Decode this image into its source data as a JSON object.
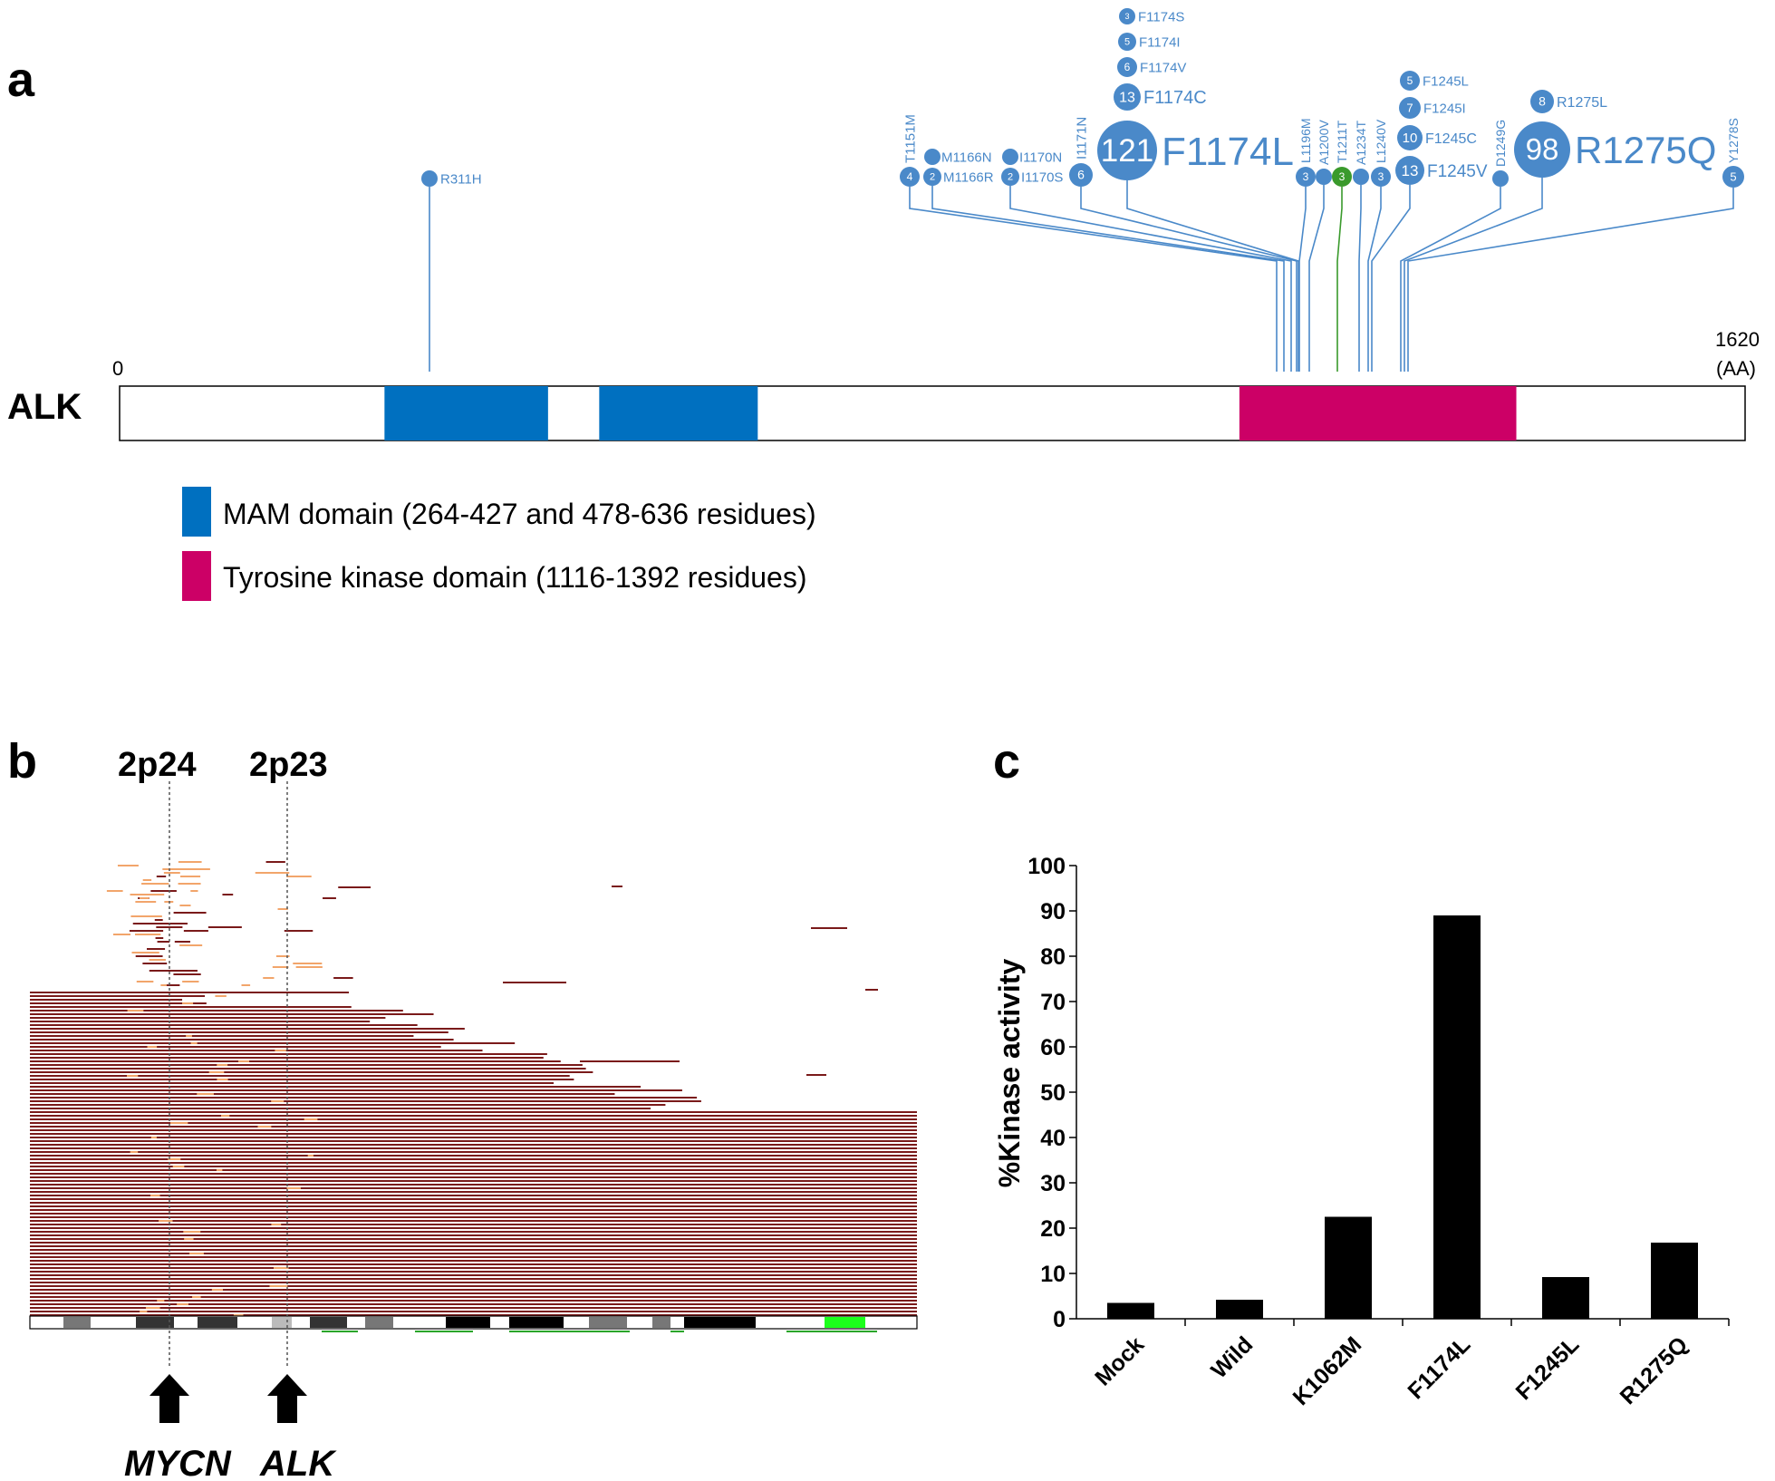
{
  "panels": {
    "a": "a",
    "b": "b",
    "c": "c"
  },
  "lollipop": {
    "protein": "ALK",
    "start_label": "0",
    "end_label": "1620",
    "unit_label": "(AA)",
    "length": 1620,
    "domains": [
      {
        "name": "MAM",
        "start": 264,
        "end": 427,
        "color": "#0070c0"
      },
      {
        "name": "MAM",
        "start": 478,
        "end": 636,
        "color": "#0070c0"
      },
      {
        "name": "Tyrosine kinase",
        "start": 1116,
        "end": 1392,
        "color": "#cc0066"
      }
    ],
    "legend": [
      {
        "text": "MAM domain (264-427 and 478-636 residues)",
        "color": "#0070c0"
      },
      {
        "text": "Tyrosine kinase domain (1116-1392 residues)",
        "color": "#cc0066"
      }
    ],
    "mutations": [
      {
        "label": "R311H",
        "pos": 311,
        "count": "",
        "color": "#4a89c9"
      },
      {
        "label": "T1151M",
        "pos": 1151,
        "count": "4",
        "color": "#4a89c9"
      },
      {
        "label": "M1166N",
        "pos": 1166,
        "count": "",
        "color": "#4a89c9"
      },
      {
        "label": "M1166R",
        "pos": 1166,
        "count": "2",
        "color": "#4a89c9"
      },
      {
        "label": "I1170N",
        "pos": 1170,
        "count": "",
        "color": "#4a89c9"
      },
      {
        "label": "I1170S",
        "pos": 1170,
        "count": "2",
        "color": "#4a89c9"
      },
      {
        "label": "I1171N",
        "pos": 1171,
        "count": "6",
        "color": "#4a89c9"
      },
      {
        "label": "F1174L",
        "pos": 1174,
        "count": "121",
        "color": "#4a89c9"
      },
      {
        "label": "F1174C",
        "pos": 1174,
        "count": "13",
        "color": "#4a89c9"
      },
      {
        "label": "F1174V",
        "pos": 1174,
        "count": "6",
        "color": "#4a89c9"
      },
      {
        "label": "F1174I",
        "pos": 1174,
        "count": "5",
        "color": "#4a89c9"
      },
      {
        "label": "F1174S",
        "pos": 1174,
        "count": "3",
        "color": "#4a89c9"
      },
      {
        "label": "L1196M",
        "pos": 1196,
        "count": "3",
        "color": "#4a89c9"
      },
      {
        "label": "A1200V",
        "pos": 1200,
        "count": "",
        "color": "#4a89c9"
      },
      {
        "label": "T1211T",
        "pos": 1211,
        "count": "3",
        "color": "#3a9a2c"
      },
      {
        "label": "A1234T",
        "pos": 1234,
        "count": "",
        "color": "#4a89c9"
      },
      {
        "label": "L1240V",
        "pos": 1240,
        "count": "3",
        "color": "#4a89c9"
      },
      {
        "label": "F1245V",
        "pos": 1245,
        "count": "13",
        "color": "#4a89c9"
      },
      {
        "label": "F1245C",
        "pos": 1245,
        "count": "10",
        "color": "#4a89c9"
      },
      {
        "label": "F1245I",
        "pos": 1245,
        "count": "7",
        "color": "#4a89c9"
      },
      {
        "label": "F1245L",
        "pos": 1245,
        "count": "5",
        "color": "#4a89c9"
      },
      {
        "label": "D1249G",
        "pos": 1249,
        "count": "",
        "color": "#4a89c9"
      },
      {
        "label": "R1275Q",
        "pos": 1275,
        "count": "98",
        "color": "#4a89c9"
      },
      {
        "label": "R1275L",
        "pos": 1275,
        "count": "8",
        "color": "#4a89c9"
      },
      {
        "label": "Y1278S",
        "pos": 1278,
        "count": "5",
        "color": "#4a89c9"
      }
    ]
  },
  "cnv": {
    "bands": [
      "2p24",
      "2p23"
    ],
    "genes": [
      "MYCN",
      "ALK"
    ],
    "colors": {
      "gain": "#7a1a1a",
      "amp": "#f2a56b"
    }
  },
  "chart_data": {
    "type": "bar",
    "categories": [
      "Mock",
      "Wild",
      "K1062M",
      "F1174L",
      "F1245L",
      "R1275Q"
    ],
    "values": [
      3.5,
      4.2,
      22.5,
      89,
      9.2,
      16.8
    ],
    "ylabel": "%Kinase activity",
    "ylim": [
      0,
      100
    ],
    "yticks": [
      0,
      10,
      20,
      30,
      40,
      50,
      60,
      70,
      80,
      90,
      100
    ],
    "bar_color": "#000000"
  }
}
